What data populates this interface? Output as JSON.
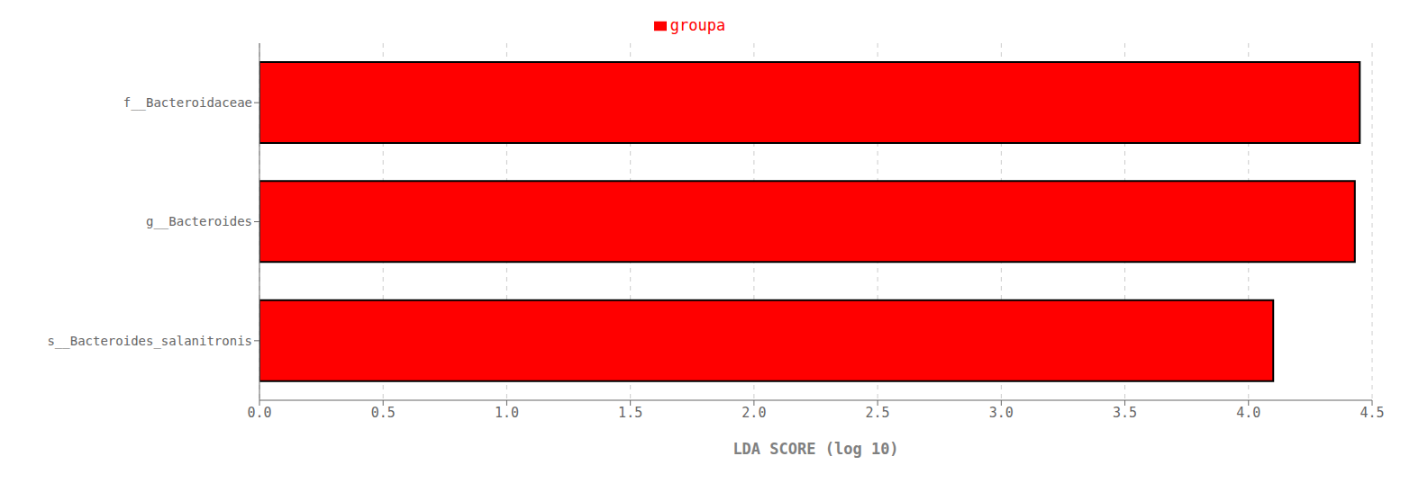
{
  "chart_data": {
    "type": "bar",
    "orientation": "horizontal",
    "categories": [
      "s__Bacteroides_salanitronis",
      "g__Bacteroides",
      "f__Bacteroidaceae"
    ],
    "series": [
      {
        "name": "groupa",
        "color": "#ff0000",
        "values": [
          4.1,
          4.43,
          4.45
        ]
      }
    ],
    "xlabel": "LDA SCORE (log 10)",
    "xlim": [
      0.0,
      4.5
    ],
    "xticks": [
      {
        "value": 0.0,
        "label": "0.0"
      },
      0.5,
      {
        "value": 1.0,
        "label": "1.0"
      },
      1.5,
      {
        "value": 2.0,
        "label": "2.0"
      },
      2.5,
      {
        "value": 3.0,
        "label": "3.0"
      },
      3.5,
      {
        "value": 4.0,
        "label": "4.0"
      },
      4.5
    ],
    "grid": true,
    "legend": "top"
  }
}
